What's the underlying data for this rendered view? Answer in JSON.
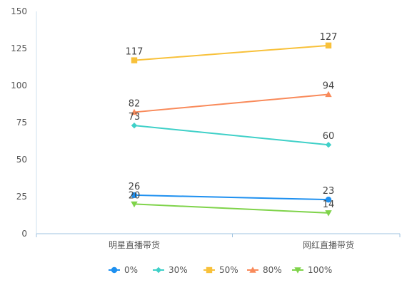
{
  "chart_data": {
    "type": "line",
    "categories": [
      "明星直播带货",
      "网红直播带货"
    ],
    "ylim": [
      0,
      150
    ],
    "yticks": [
      0,
      25,
      50,
      75,
      100,
      125,
      150
    ],
    "grid": false,
    "legend_position": "bottom",
    "series": [
      {
        "name": "0%",
        "values": [
          26,
          23
        ],
        "color": "#1e90f0",
        "marker": "circle"
      },
      {
        "name": "30%",
        "values": [
          73,
          60
        ],
        "color": "#3fd0c8",
        "marker": "diamond"
      },
      {
        "name": "50%",
        "values": [
          117,
          127
        ],
        "color": "#f8c13a",
        "marker": "square"
      },
      {
        "name": "80%",
        "values": [
          82,
          94
        ],
        "color": "#f98a5a",
        "marker": "triangle"
      },
      {
        "name": "100%",
        "values": [
          20,
          14
        ],
        "color": "#7fd34a",
        "marker": "triangle-down"
      }
    ]
  }
}
